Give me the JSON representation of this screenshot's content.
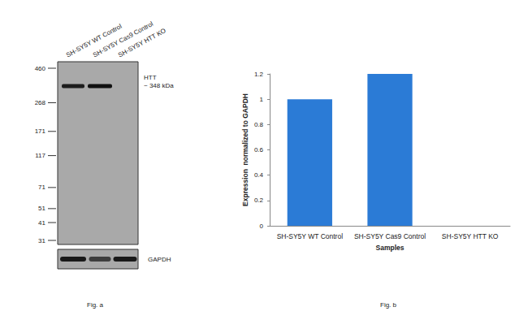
{
  "chart_data": {
    "type": "bar",
    "categories": [
      "SH-SY5Y WT Control",
      "SH-SY5Y Cas9 Control",
      "SH-SY5Y HTT KO"
    ],
    "values": [
      1,
      1.2,
      0
    ],
    "color": "#2b7bd6",
    "ylim": [
      0,
      1.2
    ],
    "yticks": [
      0,
      0.2,
      0.4,
      0.6,
      0.8,
      1,
      1.2
    ],
    "y_label": "Expression  normalized to GAPDH",
    "x_label": "Samples",
    "grid": false
  },
  "blot": {
    "lanes": [
      "SH-SY5Y WT Control",
      "SH-SY5Y Cas9 Control",
      "SH-SY5Y HTT KO"
    ],
    "markers": [
      460,
      268,
      171,
      117,
      71,
      51,
      41,
      31
    ],
    "target": {
      "label": "HTT",
      "size_label": "~ 348 kDa",
      "kDa": 348
    },
    "loading_control": "GAPDH"
  },
  "captions": [
    "Fig. a",
    "Fig. b"
  ]
}
